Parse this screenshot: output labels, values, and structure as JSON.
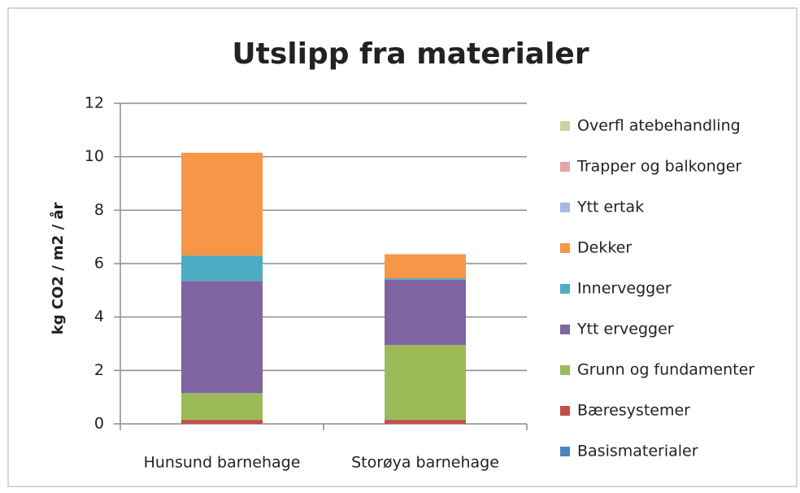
{
  "chart_data": {
    "type": "stacked_bar",
    "title": "Utslipp fra materialer",
    "y_label": "kg CO2 / m2 / år",
    "categories": [
      "Hunsund barnehage",
      "Storøya barnehage"
    ],
    "series": [
      {
        "name": "Basismaterialer",
        "color": "#4f81bd",
        "values": [
          0,
          0
        ]
      },
      {
        "name": "Bæresystemer",
        "color": "#c0504d",
        "values": [
          0.15,
          0.15
        ]
      },
      {
        "name": "Grunn og fundamenter",
        "color": "#9bbb59",
        "values": [
          1.0,
          2.8
        ]
      },
      {
        "name": "Ytt ervegger",
        "color": "#8064a2",
        "values": [
          4.2,
          2.45
        ]
      },
      {
        "name": "Innervegger",
        "color": "#4bacc6",
        "values": [
          0.95,
          0.05
        ]
      },
      {
        "name": "Dekker",
        "color": "#f79646",
        "values": [
          3.85,
          0.9
        ]
      },
      {
        "name": "Ytt ertak",
        "color": "#a7b9e0",
        "values": [
          0,
          0
        ]
      },
      {
        "name": "Trapper og balkonger",
        "color": "#e6a5a4",
        "values": [
          0,
          0
        ]
      },
      {
        "name": "Overfl atebehandling",
        "color": "#c3d69b",
        "values": [
          0,
          0
        ]
      }
    ],
    "ylim": [
      0,
      12
    ],
    "yticks": [
      0,
      2,
      4,
      6,
      8,
      10,
      12
    ],
    "grid": true,
    "legend": "right"
  }
}
